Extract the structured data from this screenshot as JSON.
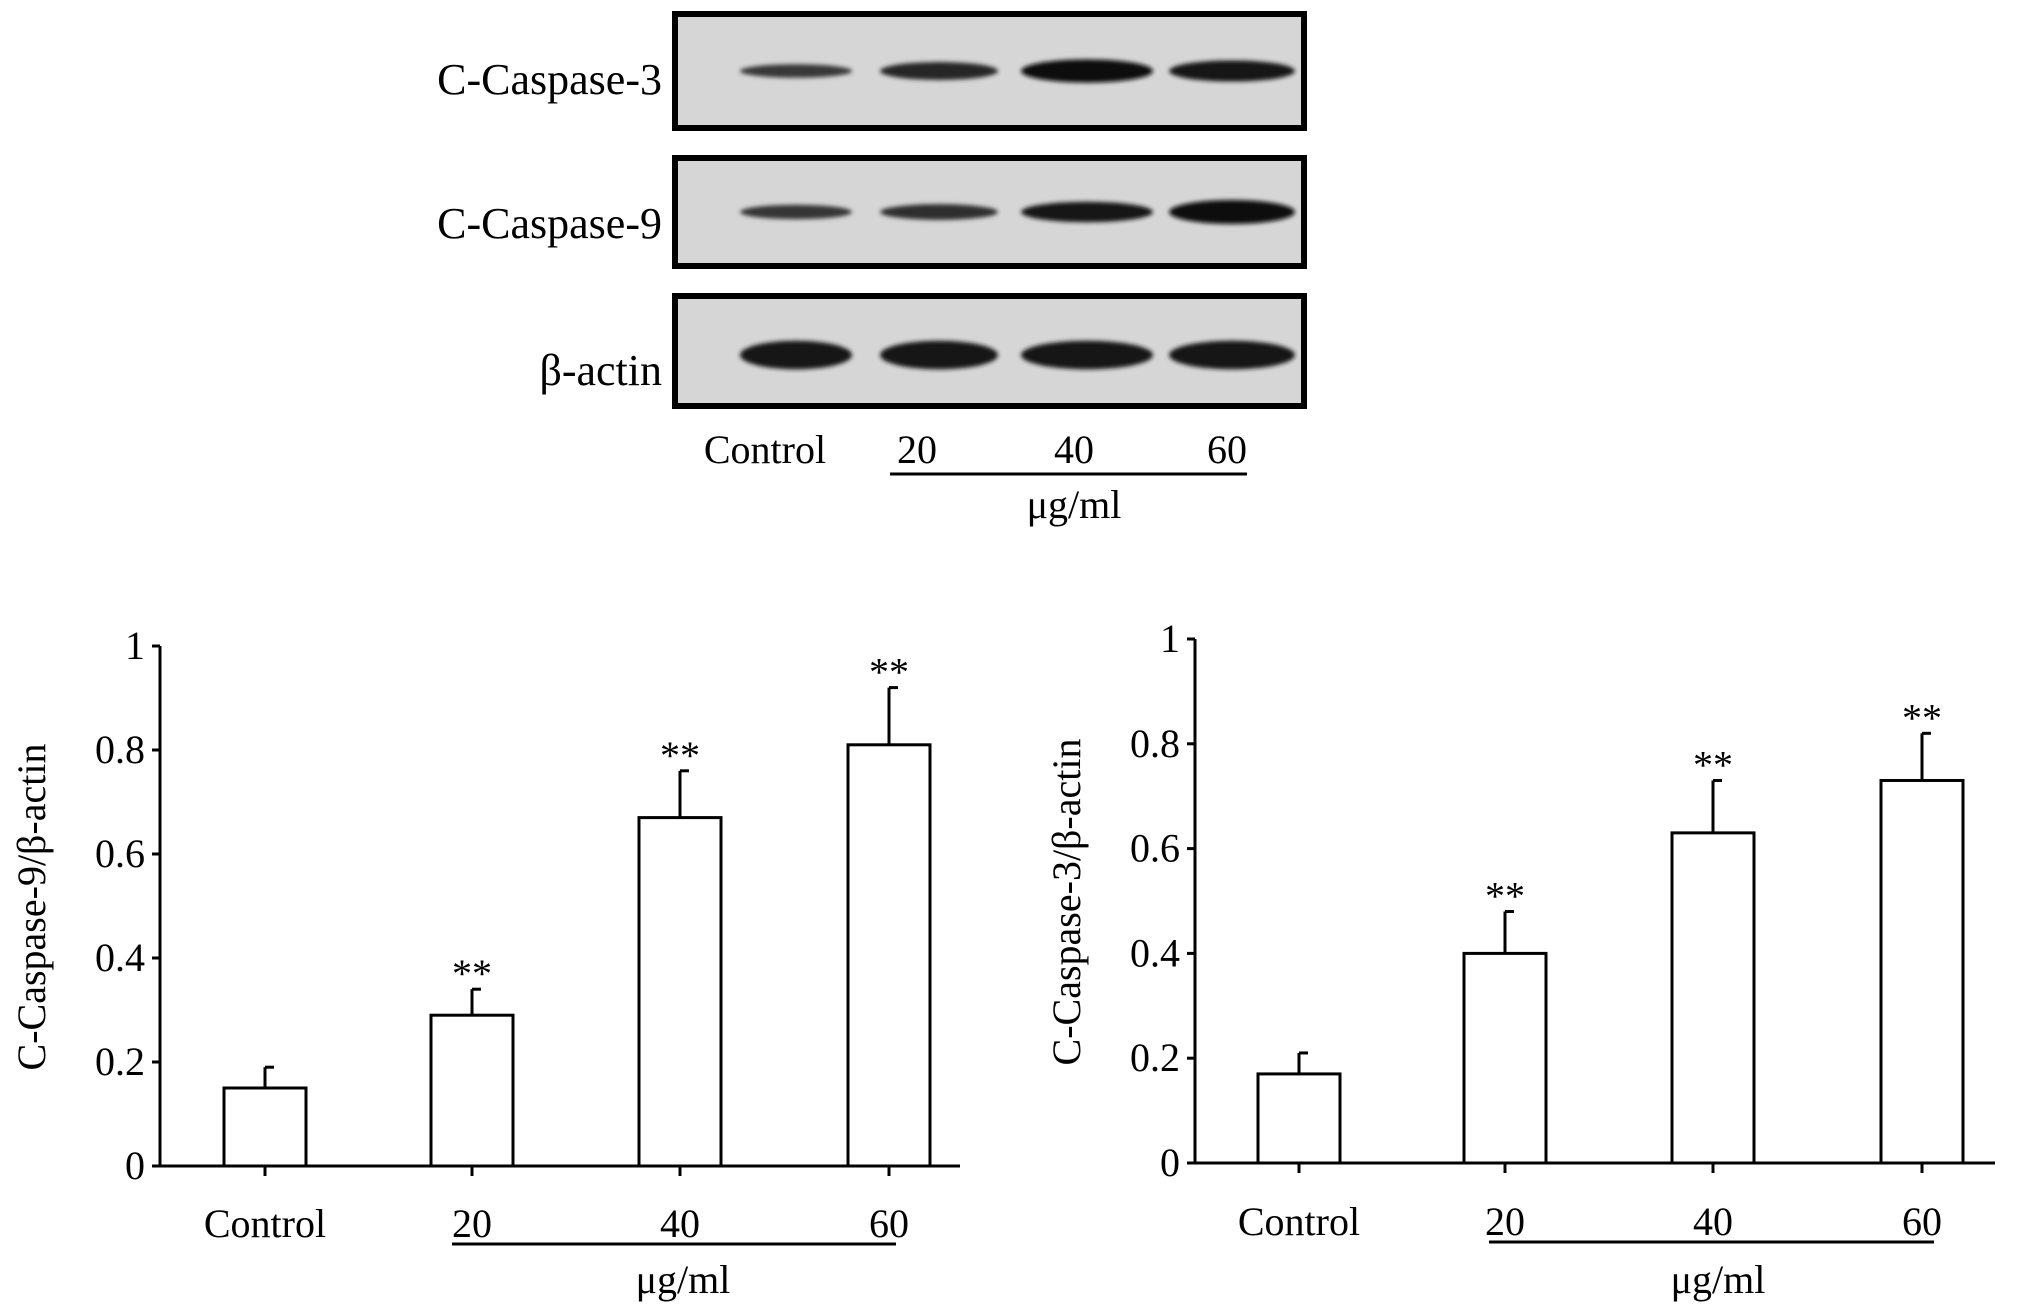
{
  "blot": {
    "rows": [
      {
        "label": "C-Caspase-3",
        "intensity": [
          0.35,
          0.62,
          0.95,
          0.82
        ]
      },
      {
        "label": "C-Caspase-9",
        "intensity": [
          0.4,
          0.48,
          0.78,
          1.0
        ]
      },
      {
        "label": "β-actin",
        "intensity": [
          0.85,
          0.85,
          0.85,
          0.85
        ]
      }
    ],
    "lanes": [
      "Control",
      "20",
      "40",
      "60"
    ],
    "unit": "μg/ml"
  },
  "chart_data": [
    {
      "type": "bar",
      "categories": [
        "Control",
        "20",
        "40",
        "60"
      ],
      "values": [
        0.15,
        0.29,
        0.67,
        0.81
      ],
      "errors": [
        0.04,
        0.05,
        0.09,
        0.11
      ],
      "annotations": [
        "",
        "**",
        "**",
        "**"
      ],
      "ylabel": "C-Caspase-9/β-actin",
      "xunit": "μg/ml",
      "ylim": [
        0,
        1
      ],
      "yticks": [
        0,
        0.2,
        0.4,
        0.6,
        0.8,
        1
      ],
      "ytick_labels": [
        "0",
        "0.2",
        "0.4",
        "0.6",
        "0.8",
        "1"
      ],
      "grid": false
    },
    {
      "type": "bar",
      "categories": [
        "Control",
        "20",
        "40",
        "60"
      ],
      "values": [
        0.17,
        0.4,
        0.63,
        0.73
      ],
      "errors": [
        0.04,
        0.08,
        0.1,
        0.09
      ],
      "annotations": [
        "",
        "**",
        "**",
        "**"
      ],
      "ylabel": "C-Caspase-3/β-actin",
      "xunit": "μg/ml",
      "ylim": [
        0,
        1
      ],
      "yticks": [
        0,
        0.2,
        0.4,
        0.6,
        0.8,
        1
      ],
      "ytick_labels": [
        "0",
        "0.2",
        "0.4",
        "0.6",
        "0.8",
        "1"
      ],
      "grid": false
    }
  ]
}
